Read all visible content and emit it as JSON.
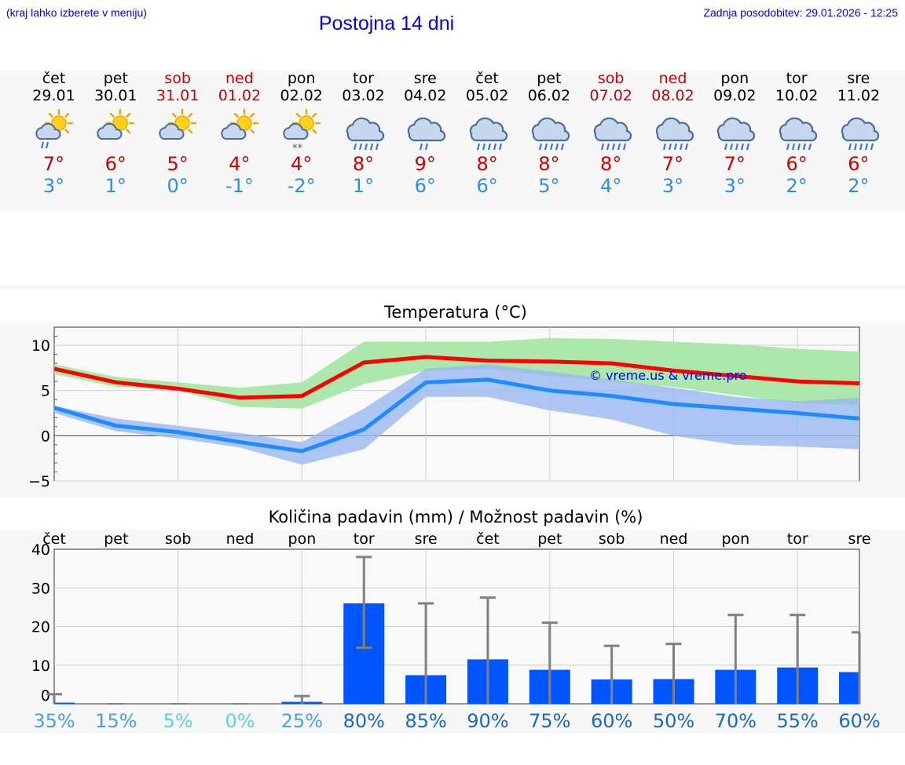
{
  "header": {
    "hint": "(kraj lahko izberete v meniju)",
    "title": "Postojna 14 dni",
    "updated": "Zadnja posodobitev: 29.01.2026 - 12:25"
  },
  "days": [
    {
      "name": "čet",
      "date": "29.01",
      "weekend": false,
      "icon": "sun-cloud-rain-icon",
      "max": "7°",
      "min": "3°"
    },
    {
      "name": "pet",
      "date": "30.01",
      "weekend": false,
      "icon": "sun-cloud-icon",
      "max": "6°",
      "min": "1°"
    },
    {
      "name": "sob",
      "date": "31.01",
      "weekend": true,
      "icon": "sun-cloud-icon",
      "max": "5°",
      "min": "0°"
    },
    {
      "name": "ned",
      "date": "01.02",
      "weekend": true,
      "icon": "sun-cloud-icon",
      "max": "4°",
      "min": "-1°"
    },
    {
      "name": "pon",
      "date": "02.02",
      "weekend": false,
      "icon": "sun-cloud-snow-icon",
      "max": "4°",
      "min": "-2°"
    },
    {
      "name": "tor",
      "date": "03.02",
      "weekend": false,
      "icon": "cloud-rain-icon",
      "max": "8°",
      "min": "1°"
    },
    {
      "name": "sre",
      "date": "04.02",
      "weekend": false,
      "icon": "cloud-light-rain-icon",
      "max": "9°",
      "min": "6°"
    },
    {
      "name": "čet",
      "date": "05.02",
      "weekend": false,
      "icon": "cloud-rain-icon",
      "max": "8°",
      "min": "6°"
    },
    {
      "name": "pet",
      "date": "06.02",
      "weekend": false,
      "icon": "cloud-rain-icon",
      "max": "8°",
      "min": "5°"
    },
    {
      "name": "sob",
      "date": "07.02",
      "weekend": true,
      "icon": "cloud-rain-icon",
      "max": "8°",
      "min": "4°"
    },
    {
      "name": "ned",
      "date": "08.02",
      "weekend": true,
      "icon": "cloud-rain-icon",
      "max": "7°",
      "min": "3°"
    },
    {
      "name": "pon",
      "date": "09.02",
      "weekend": false,
      "icon": "cloud-rain-icon",
      "max": "7°",
      "min": "3°"
    },
    {
      "name": "tor",
      "date": "10.02",
      "weekend": false,
      "icon": "cloud-rain-icon",
      "max": "6°",
      "min": "2°"
    },
    {
      "name": "sre",
      "date": "11.02",
      "weekend": false,
      "icon": "cloud-rain-icon",
      "max": "6°",
      "min": "2°"
    }
  ],
  "colors": {
    "max": "#ff0000",
    "min": "#1e8cff",
    "maxBand": "#a8e6a8",
    "minBand": "#9ab8f0",
    "bar": "#0055ff",
    "whisker": "#808080"
  },
  "chart_data": [
    {
      "type": "line",
      "title": "Temperatura (°C)",
      "x": [
        0,
        1,
        2,
        3,
        4,
        5,
        6,
        7,
        8,
        9,
        10,
        11,
        12,
        13
      ],
      "ylim": [
        -5,
        12
      ],
      "yticks": [
        -5,
        0,
        5,
        10
      ],
      "watermark": "© vreme.us & vreme.pro",
      "series": [
        {
          "name": "max",
          "values": [
            7.4,
            5.9,
            5.2,
            4.2,
            4.4,
            8.1,
            8.7,
            8.3,
            8.2,
            8.0,
            7.2,
            6.6,
            6.0,
            5.8
          ],
          "band_low": [
            6.8,
            5.4,
            5.0,
            3.2,
            3.0,
            5.7,
            7.2,
            7.4,
            6.6,
            6.0,
            5.4,
            4.5,
            3.6,
            3.4
          ],
          "band_high": [
            7.9,
            6.5,
            5.9,
            5.3,
            5.9,
            10.4,
            10.4,
            10.4,
            10.8,
            10.7,
            10.4,
            10.1,
            9.6,
            9.3
          ]
        },
        {
          "name": "min",
          "values": [
            3.1,
            1.1,
            0.4,
            -0.7,
            -1.7,
            0.7,
            5.9,
            6.2,
            5.0,
            4.4,
            3.5,
            3.0,
            2.5,
            1.9
          ],
          "band_low": [
            2.5,
            0.5,
            -0.3,
            -1.3,
            -3.2,
            -1.5,
            4.3,
            4.3,
            2.8,
            1.8,
            0.0,
            -1.0,
            -1.2,
            -1.5
          ],
          "band_high": [
            3.3,
            1.9,
            1.1,
            0.3,
            -0.7,
            3.0,
            7.4,
            7.9,
            7.1,
            6.2,
            5.3,
            4.3,
            3.8,
            4.2
          ]
        }
      ]
    },
    {
      "type": "bar",
      "title": "Količina padavin (mm) / Možnost padavin (%)",
      "categories": [
        "čet",
        "pet",
        "sob",
        "ned",
        "pon",
        "tor",
        "sre",
        "čet",
        "pet",
        "sob",
        "ned",
        "pon",
        "tor",
        "sre"
      ],
      "ylim": [
        0,
        40
      ],
      "yticks": [
        0,
        10,
        20,
        30,
        40
      ],
      "values": [
        0.3,
        0,
        0,
        0,
        0.5,
        26,
        7.4,
        11.5,
        8.8,
        6.3,
        6.4,
        8.8,
        9.4,
        8.2
      ],
      "err_high": [
        2.5,
        0,
        0,
        0,
        2,
        38,
        26,
        27.5,
        21,
        15,
        15.5,
        23,
        23,
        18.5
      ],
      "err_low": [
        0,
        0,
        0,
        0,
        0,
        14.5,
        0,
        0,
        0,
        0,
        0,
        0,
        0,
        0
      ],
      "probability": [
        "35%",
        "15%",
        "5%",
        "0%",
        "25%",
        "80%",
        "85%",
        "90%",
        "75%",
        "60%",
        "50%",
        "70%",
        "55%",
        "60%"
      ],
      "probColors": [
        "#4aa0e0",
        "#4aa0e0",
        "#5fd0e0",
        "#5fd0e0",
        "#4aa0e0",
        "#1a6ab8",
        "#1a6ab8",
        "#1a6ab8",
        "#1a6ab8",
        "#1a6ab8",
        "#1a6ab8",
        "#1a6ab8",
        "#1a6ab8",
        "#1a6ab8"
      ]
    }
  ]
}
